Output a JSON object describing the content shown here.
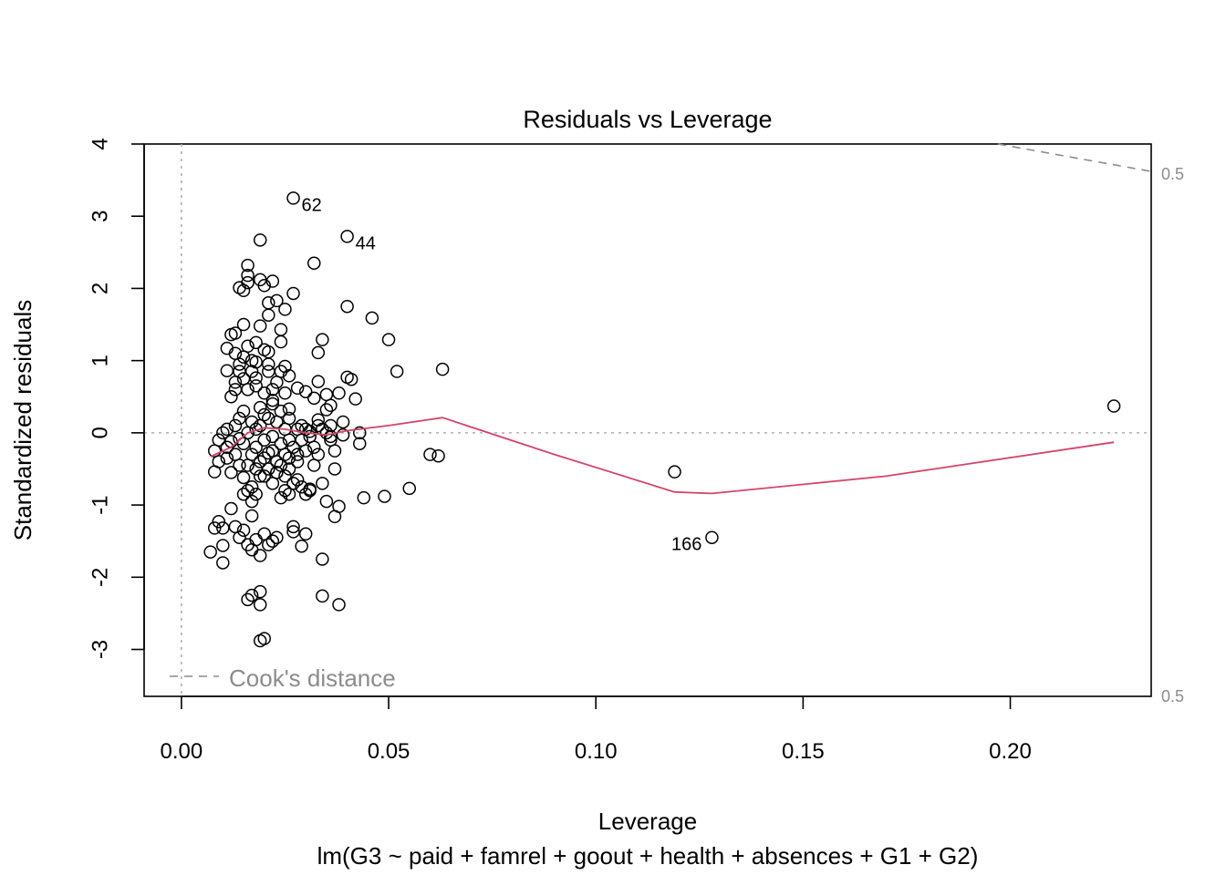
{
  "chart_data": {
    "type": "scatter",
    "title": "Residuals vs Leverage",
    "xlabel": "Leverage",
    "ylabel": "Standardized residuals",
    "subtitle": "lm(G3 ~ paid + famrel + goout + health + absences + G1 + G2)",
    "xlim": [
      -0.009,
      0.234
    ],
    "ylim": [
      -3.65,
      4.0
    ],
    "x_ticks": [
      "0.00",
      "0.05",
      "0.10",
      "0.15",
      "0.20"
    ],
    "x_tick_values": [
      0,
      0.05,
      0.1,
      0.15,
      0.2
    ],
    "y_ticks": [
      "-3",
      "-2",
      "-1",
      "0",
      "1",
      "2",
      "3",
      "4"
    ],
    "y_tick_values": [
      -3,
      -2,
      -1,
      0,
      1,
      2,
      3,
      4
    ],
    "legend": {
      "label": "Cook's distance",
      "position": "bottom-left"
    },
    "cooks_contour_label": "0.5",
    "cooks_contour_labels": [
      "0.5",
      "0.5"
    ],
    "cooks_contour_upper": [
      [
        0.197,
        4.0
      ],
      [
        0.234,
        3.62
      ]
    ],
    "reference_lines": {
      "h": 0,
      "v": 0
    },
    "smoother": {
      "color": "#d4456a",
      "points": [
        [
          0.007,
          -0.33
        ],
        [
          0.012,
          -0.2
        ],
        [
          0.016,
          0.0
        ],
        [
          0.02,
          0.07
        ],
        [
          0.025,
          0.05
        ],
        [
          0.03,
          0.0
        ],
        [
          0.035,
          -0.03
        ],
        [
          0.04,
          0.03
        ],
        [
          0.05,
          0.1
        ],
        [
          0.063,
          0.21
        ],
        [
          0.09,
          -0.3
        ],
        [
          0.119,
          -0.82
        ],
        [
          0.128,
          -0.84
        ],
        [
          0.17,
          -0.6
        ],
        [
          0.225,
          -0.13
        ]
      ]
    },
    "labeled_points": [
      {
        "label": "62",
        "x": 0.027,
        "y": 3.25,
        "side": "right"
      },
      {
        "label": "44",
        "x": 0.04,
        "y": 2.72,
        "side": "right"
      },
      {
        "label": "166",
        "x": 0.128,
        "y": -1.45,
        "side": "left"
      }
    ],
    "points": [
      [
        0.027,
        3.25
      ],
      [
        0.04,
        2.72
      ],
      [
        0.128,
        -1.45
      ],
      [
        0.225,
        0.37
      ],
      [
        0.119,
        -0.54
      ],
      [
        0.063,
        0.88
      ],
      [
        0.052,
        0.85
      ],
      [
        0.05,
        1.29
      ],
      [
        0.046,
        1.59
      ],
      [
        0.04,
        1.75
      ],
      [
        0.06,
        -0.3
      ],
      [
        0.062,
        -0.32
      ],
      [
        0.055,
        -0.77
      ],
      [
        0.049,
        -0.88
      ],
      [
        0.044,
        -0.9
      ],
      [
        0.043,
        -0.15
      ],
      [
        0.043,
        0.0
      ],
      [
        0.042,
        0.47
      ],
      [
        0.041,
        0.74
      ],
      [
        0.04,
        0.77
      ],
      [
        0.039,
        -0.03
      ],
      [
        0.038,
        -1.02
      ],
      [
        0.038,
        -2.38
      ],
      [
        0.037,
        -1.16
      ],
      [
        0.037,
        -0.5
      ],
      [
        0.036,
        0.38
      ],
      [
        0.035,
        0.32
      ],
      [
        0.035,
        0.53
      ],
      [
        0.034,
        -1.75
      ],
      [
        0.034,
        -2.26
      ],
      [
        0.034,
        1.29
      ],
      [
        0.033,
        1.11
      ],
      [
        0.033,
        0.71
      ],
      [
        0.032,
        2.35
      ],
      [
        0.032,
        0.48
      ],
      [
        0.031,
        -0.78
      ],
      [
        0.03,
        0.57
      ],
      [
        0.03,
        -1.4
      ],
      [
        0.029,
        -1.57
      ],
      [
        0.028,
        0.62
      ],
      [
        0.027,
        1.93
      ],
      [
        0.027,
        -1.3
      ],
      [
        0.027,
        -1.37
      ],
      [
        0.026,
        0.79
      ],
      [
        0.026,
        0.33
      ],
      [
        0.025,
        1.71
      ],
      [
        0.025,
        0.92
      ],
      [
        0.024,
        1.43
      ],
      [
        0.024,
        1.26
      ],
      [
        0.023,
        1.83
      ],
      [
        0.023,
        -0.55
      ],
      [
        0.022,
        2.1
      ],
      [
        0.022,
        0.45
      ],
      [
        0.021,
        1.8
      ],
      [
        0.021,
        1.63
      ],
      [
        0.021,
        1.12
      ],
      [
        0.02,
        2.04
      ],
      [
        0.02,
        -2.85
      ],
      [
        0.019,
        -2.88
      ],
      [
        0.019,
        2.67
      ],
      [
        0.019,
        2.12
      ],
      [
        0.019,
        1.48
      ],
      [
        0.019,
        -2.2
      ],
      [
        0.019,
        -2.38
      ],
      [
        0.018,
        0.98
      ],
      [
        0.018,
        0.76
      ],
      [
        0.017,
        -1.15
      ],
      [
        0.017,
        -2.25
      ],
      [
        0.016,
        2.32
      ],
      [
        0.016,
        2.18
      ],
      [
        0.016,
        2.08
      ],
      [
        0.016,
        -2.31
      ],
      [
        0.015,
        1.5
      ],
      [
        0.015,
        1.97
      ],
      [
        0.014,
        2.01
      ],
      [
        0.013,
        1.38
      ],
      [
        0.012,
        1.36
      ],
      [
        0.011,
        1.17
      ],
      [
        0.011,
        0.86
      ],
      [
        0.01,
        -1.32
      ],
      [
        0.01,
        -1.56
      ],
      [
        0.01,
        -1.8
      ],
      [
        0.009,
        -1.23
      ],
      [
        0.008,
        -1.32
      ],
      [
        0.007,
        -1.65
      ],
      [
        0.008,
        -0.25
      ],
      [
        0.009,
        -0.1
      ],
      [
        0.008,
        -0.54
      ],
      [
        0.011,
        0.05
      ],
      [
        0.012,
        -0.12
      ],
      [
        0.013,
        -0.3
      ],
      [
        0.014,
        -0.45
      ],
      [
        0.015,
        -0.62
      ],
      [
        0.016,
        -0.8
      ],
      [
        0.017,
        -0.95
      ],
      [
        0.018,
        -0.2
      ],
      [
        0.019,
        -0.4
      ],
      [
        0.02,
        -0.6
      ],
      [
        0.021,
        -0.28
      ],
      [
        0.022,
        -0.05
      ],
      [
        0.023,
        0.15
      ],
      [
        0.024,
        0.3
      ],
      [
        0.025,
        0.05
      ],
      [
        0.026,
        -0.35
      ],
      [
        0.027,
        -0.7
      ],
      [
        0.028,
        -0.65
      ],
      [
        0.029,
        0.1
      ],
      [
        0.03,
        -0.25
      ],
      [
        0.031,
        0.02
      ],
      [
        0.032,
        -0.2
      ],
      [
        0.033,
        0.18
      ],
      [
        0.034,
        0.05
      ],
      [
        0.035,
        -0.95
      ],
      [
        0.036,
        -0.1
      ],
      [
        0.037,
        -0.25
      ],
      [
        0.012,
        0.5
      ],
      [
        0.013,
        0.7
      ],
      [
        0.014,
        0.95
      ],
      [
        0.015,
        1.05
      ],
      [
        0.016,
        0.6
      ],
      [
        0.017,
        0.85
      ],
      [
        0.018,
        1.25
      ],
      [
        0.019,
        0.35
      ],
      [
        0.02,
        0.55
      ],
      [
        0.021,
        0.85
      ],
      [
        0.022,
        0.4
      ],
      [
        0.023,
        0.7
      ],
      [
        0.012,
        -1.05
      ],
      [
        0.013,
        -1.3
      ],
      [
        0.014,
        -1.45
      ],
      [
        0.015,
        -1.35
      ],
      [
        0.016,
        -1.55
      ],
      [
        0.017,
        -1.62
      ],
      [
        0.018,
        -1.48
      ],
      [
        0.019,
        -1.7
      ],
      [
        0.02,
        -1.4
      ],
      [
        0.021,
        -1.55
      ],
      [
        0.022,
        -1.5
      ],
      [
        0.023,
        -1.45
      ],
      [
        0.024,
        -0.9
      ],
      [
        0.025,
        -0.6
      ],
      [
        0.026,
        -0.85
      ],
      [
        0.027,
        -0.2
      ],
      [
        0.028,
        -0.4
      ],
      [
        0.029,
        -0.75
      ],
      [
        0.03,
        -0.85
      ],
      [
        0.031,
        -0.8
      ],
      [
        0.011,
        -0.35
      ],
      [
        0.012,
        -0.55
      ],
      [
        0.013,
        0.1
      ],
      [
        0.014,
        0.2
      ],
      [
        0.015,
        -0.15
      ],
      [
        0.016,
        0.0
      ],
      [
        0.017,
        -0.3
      ],
      [
        0.018,
        -0.5
      ],
      [
        0.019,
        0.1
      ],
      [
        0.02,
        -0.1
      ],
      [
        0.021,
        0.2
      ],
      [
        0.022,
        -0.25
      ],
      [
        0.023,
        -0.4
      ],
      [
        0.024,
        -0.15
      ],
      [
        0.025,
        -0.3
      ],
      [
        0.026,
        -0.1
      ],
      [
        0.01,
        0.0
      ],
      [
        0.009,
        -0.4
      ],
      [
        0.011,
        -0.2
      ],
      [
        0.014,
        -0.08
      ],
      [
        0.015,
        0.3
      ],
      [
        0.016,
        -0.45
      ],
      [
        0.017,
        0.15
      ],
      [
        0.018,
        0.05
      ],
      [
        0.019,
        -0.6
      ],
      [
        0.02,
        0.25
      ],
      [
        0.022,
        -0.7
      ],
      [
        0.024,
        -0.45
      ],
      [
        0.013,
        1.1
      ],
      [
        0.014,
        0.85
      ],
      [
        0.015,
        0.75
      ],
      [
        0.016,
        1.2
      ],
      [
        0.017,
        1.0
      ],
      [
        0.018,
        0.65
      ],
      [
        0.02,
        1.15
      ],
      [
        0.021,
        0.95
      ],
      [
        0.022,
        0.6
      ],
      [
        0.024,
        0.85
      ],
      [
        0.025,
        0.55
      ],
      [
        0.026,
        0.2
      ],
      [
        0.028,
        0.05
      ],
      [
        0.03,
        0.05
      ],
      [
        0.029,
        -0.1
      ],
      [
        0.032,
        -0.45
      ],
      [
        0.033,
        -0.3
      ],
      [
        0.034,
        -0.7
      ],
      [
        0.035,
        0.0
      ],
      [
        0.036,
        0.1
      ],
      [
        0.013,
        0.6
      ],
      [
        0.015,
        -0.85
      ],
      [
        0.017,
        -0.75
      ],
      [
        0.018,
        -0.85
      ],
      [
        0.02,
        -0.35
      ],
      [
        0.021,
        -0.5
      ],
      [
        0.023,
        -0.55
      ],
      [
        0.025,
        -0.8
      ],
      [
        0.026,
        -0.5
      ],
      [
        0.028,
        -0.3
      ],
      [
        0.031,
        -0.05
      ],
      [
        0.033,
        0.1
      ],
      [
        0.036,
        -0.05
      ],
      [
        0.038,
        0.55
      ],
      [
        0.039,
        0.15
      ]
    ]
  }
}
